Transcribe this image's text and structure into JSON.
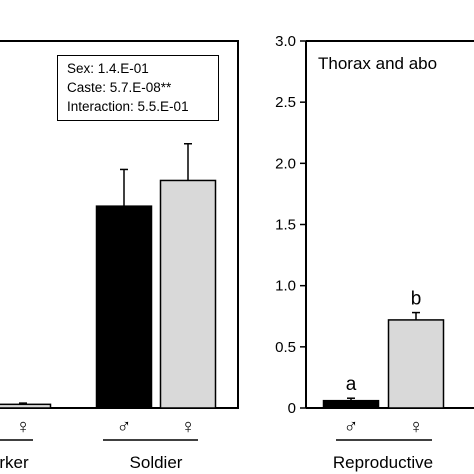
{
  "chart_data": [
    {
      "type": "bar",
      "panel": "left",
      "title": "",
      "xlabel": "",
      "ylabel": "",
      "groups": [
        "Worker",
        "Soldier"
      ],
      "group_labels_visible": [
        "rker",
        "Soldier"
      ],
      "sex_symbols": [
        "♂",
        "♀"
      ],
      "series": [
        {
          "color": "#000000",
          "values": [
            0.01,
            1.65
          ],
          "errors": [
            0.005,
            0.3
          ]
        },
        {
          "color": "#d9d9d9",
          "values": [
            0.03,
            1.86
          ],
          "errors": [
            0.01,
            0.3
          ]
        }
      ],
      "statistics": {
        "sex": "Sex: 1.4.E-01",
        "caste": "Caste: 5.7.E-08**",
        "interaction": "Interaction: 5.5.E-01"
      },
      "ylim": [
        0,
        3.0
      ],
      "grid": false
    },
    {
      "type": "bar",
      "panel": "right",
      "title": "Thorax and abo",
      "xlabel": "",
      "ylabel": "",
      "groups": [
        "Reproductive"
      ],
      "sex_symbols": [
        "♂",
        "♀"
      ],
      "series": [
        {
          "color": "#000000",
          "values": [
            0.06
          ],
          "errors": [
            0.02
          ],
          "letter": [
            "a"
          ]
        },
        {
          "color": "#d9d9d9",
          "values": [
            0.72
          ],
          "errors": [
            0.06
          ],
          "letter": [
            "b"
          ]
        }
      ],
      "ylim": [
        0,
        3.0
      ],
      "yticks": [
        "0",
        "0.5",
        "1.0",
        "1.5",
        "2.0",
        "2.5",
        "3.0"
      ],
      "grid": false
    }
  ]
}
